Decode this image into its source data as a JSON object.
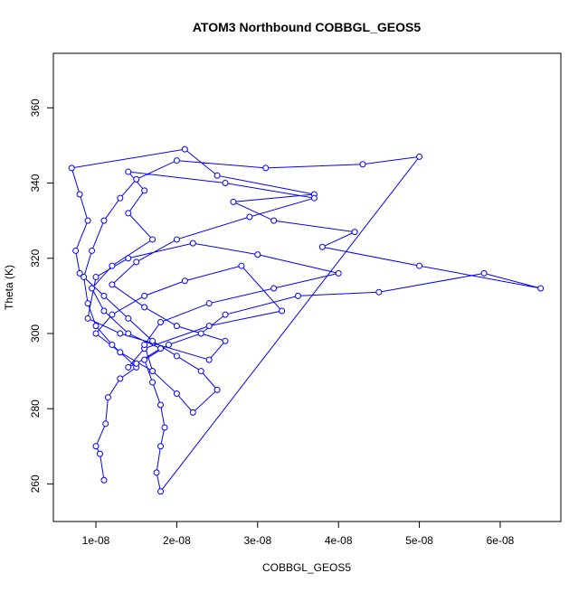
{
  "chart_data": {
    "type": "line",
    "title": "ATOM3 Northbound COBBGL_GEOS5",
    "x_label": "COBBGL_GEOS5",
    "y_label": "Theta (K)",
    "xlim": [
      4.74e-09,
      6.75e-08
    ],
    "ylim": [
      250,
      374.5
    ],
    "xticks": [
      {
        "value": 1e-08,
        "label": "1e-08"
      },
      {
        "value": 2e-08,
        "label": "2e-08"
      },
      {
        "value": 3e-08,
        "label": "3e-08"
      },
      {
        "value": 4e-08,
        "label": "4e-08"
      },
      {
        "value": 5e-08,
        "label": "5e-08"
      },
      {
        "value": 6e-08,
        "label": "6e-08"
      }
    ],
    "yticks": [
      260,
      280,
      300,
      320,
      340,
      360
    ],
    "markers": true,
    "series": [
      {
        "color": "#0000ff",
        "x": [
          1.1e-08,
          1.05e-08,
          1e-08,
          1.12e-08,
          1.15e-08,
          1.3e-08,
          1.5e-08,
          1.2e-08,
          1e-08,
          9e-09,
          8.5e-09,
          9.5e-09,
          1.1e-08,
          1.3e-08,
          1.5e-08,
          2e-08,
          3.1e-08,
          4.3e-08,
          5e-08,
          1.8e-08,
          1.75e-08,
          1.8e-08,
          1.85e-08,
          1.8e-08,
          1.7e-08,
          1.6e-08,
          1.9e-08,
          2.3e-08,
          2.6e-08,
          3.5e-08,
          4.5e-08,
          5.8e-08,
          6.5e-08,
          5e-08,
          3.8e-08,
          4.2e-08,
          3.2e-08,
          2.7e-08,
          3.7e-08,
          2.5e-08,
          2.1e-08,
          7e-09,
          8e-09,
          9e-09,
          7.5e-09,
          8e-09,
          1.1e-08,
          1.4e-08,
          1.7e-08,
          2e-08,
          2.3e-08,
          2.5e-08,
          2.2e-08,
          2e-08,
          1.7e-08,
          1.3e-08,
          1e-08,
          1.2e-08,
          1.6e-08,
          2.1e-08,
          2.8e-08,
          3.3e-08,
          2.4e-08,
          1.6e-08,
          1.4e-08,
          1.5e-08,
          1.8e-08,
          1.4e-08,
          1.1e-08,
          9.5e-09,
          1.2e-08,
          1.7e-08,
          1.4e-08,
          1.6e-08,
          1.4e-08,
          2.6e-08,
          3.7e-08,
          2.9e-08,
          2e-08,
          1.5e-08,
          1.2e-08,
          1.6e-08,
          2e-08,
          2.6e-08,
          2.4e-08,
          1.3e-08,
          9e-09,
          1e-08,
          1.4e-08,
          2.2e-08,
          3e-08,
          4e-08,
          3.2e-08,
          2.4e-08,
          1.8e-08,
          1.6e-08,
          1.7e-08
        ],
        "values": [
          261,
          268,
          270,
          276,
          283,
          288,
          291,
          297,
          302,
          308,
          315,
          322,
          330,
          336,
          341,
          346,
          344,
          345,
          347,
          258,
          263,
          270,
          275,
          281,
          287,
          293,
          297,
          300,
          305,
          310,
          311,
          316,
          312,
          318,
          323,
          327,
          330,
          335,
          337,
          342,
          349,
          344,
          337,
          330,
          322,
          316,
          310,
          304,
          298,
          294,
          290,
          285,
          279,
          284,
          290,
          295,
          300,
          305,
          310,
          314,
          318,
          306,
          302,
          296,
          291,
          292,
          296,
          300,
          306,
          312,
          318,
          325,
          332,
          338,
          343,
          340,
          336,
          331,
          325,
          319,
          313,
          307,
          302,
          298,
          293,
          300,
          304,
          315,
          320,
          324,
          321,
          316,
          312,
          308,
          303,
          297,
          290
        ]
      }
    ]
  }
}
